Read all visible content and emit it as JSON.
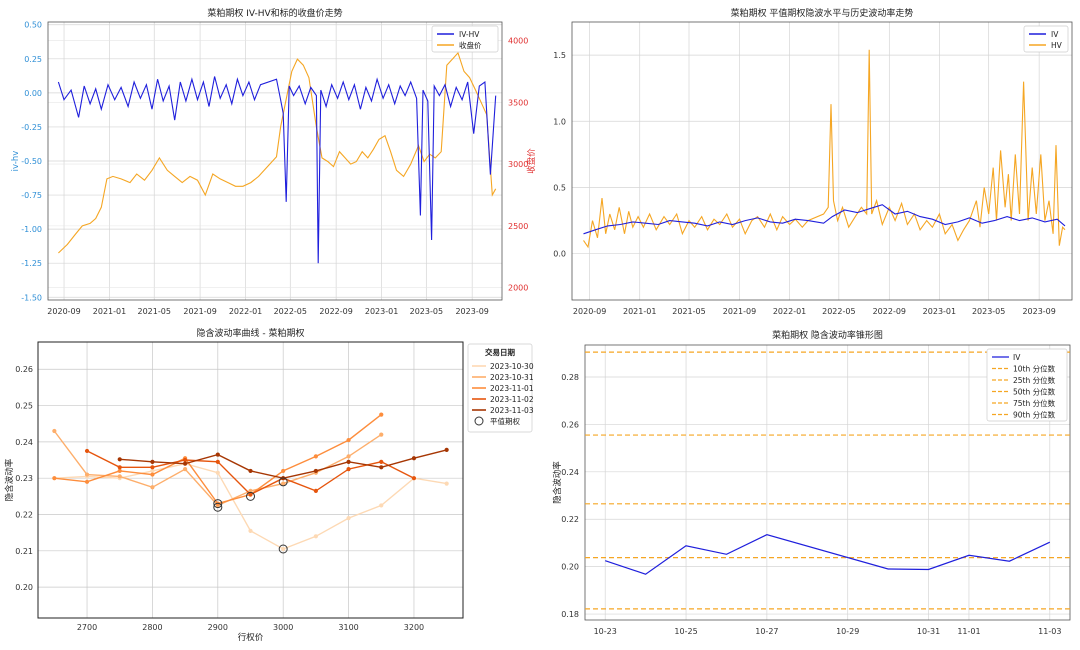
{
  "chart_data": [
    {
      "type": "line",
      "title": "菜粕期权 IV-HV和标的收盘价走势",
      "ylabel": "iv-hv",
      "y2label": "收盘价",
      "xlabel": "",
      "x_ticks": [
        "2020-09",
        "2021-01",
        "2021-05",
        "2021-09",
        "2022-01",
        "2022-05",
        "2022-09",
        "2023-01",
        "2023-05",
        "2023-09"
      ],
      "y_ticks": [
        "-1.50",
        "-1.25",
        "-1.00",
        "-0.75",
        "-0.50",
        "-0.25",
        "0.00",
        "0.25",
        "0.50"
      ],
      "y2_ticks": [
        "2000",
        "2500",
        "3000",
        "3500",
        "4000"
      ],
      "xlim": [
        "2020-07-20",
        "2023-11-20"
      ],
      "ylim": [
        -1.52,
        0.52
      ],
      "y2lim": [
        1900,
        4150
      ],
      "grid": true,
      "legend": "top-right",
      "colors": {
        "iv_hv": "#1f1fdc",
        "close": "#f5a623",
        "left_axis": "#2f8fd6",
        "right_axis": "#e03030"
      },
      "series": [
        {
          "name": "IV-HV",
          "axis": "left",
          "x": [
            "2020-08-17",
            "2020-09-01",
            "2020-09-20",
            "2020-10-10",
            "2020-10-25",
            "2020-11-10",
            "2020-11-25",
            "2020-12-10",
            "2020-12-28",
            "2021-01-15",
            "2021-02-01",
            "2021-02-20",
            "2021-03-08",
            "2021-03-25",
            "2021-04-10",
            "2021-04-25",
            "2021-05-10",
            "2021-05-25",
            "2021-06-10",
            "2021-06-25",
            "2021-07-10",
            "2021-07-25",
            "2021-08-10",
            "2021-08-25",
            "2021-09-10",
            "2021-09-25",
            "2021-10-10",
            "2021-10-25",
            "2021-11-10",
            "2021-11-25",
            "2021-12-10",
            "2021-12-25",
            "2022-01-10",
            "2022-01-25",
            "2022-02-10",
            "2022-03-25",
            "2022-04-05",
            "2022-04-12",
            "2022-04-20",
            "2022-04-28",
            "2022-05-10",
            "2022-05-25",
            "2022-06-10",
            "2022-06-25",
            "2022-07-10",
            "2022-07-15",
            "2022-07-22",
            "2022-08-05",
            "2022-08-20",
            "2022-09-05",
            "2022-09-20",
            "2022-10-05",
            "2022-10-20",
            "2022-11-05",
            "2022-11-20",
            "2022-12-05",
            "2022-12-20",
            "2023-01-05",
            "2023-01-20",
            "2023-02-05",
            "2023-02-20",
            "2023-03-05",
            "2023-03-20",
            "2023-04-05",
            "2023-04-15",
            "2023-04-22",
            "2023-05-05",
            "2023-05-15",
            "2023-05-22",
            "2023-06-05",
            "2023-06-20",
            "2023-07-05",
            "2023-07-20",
            "2023-08-05",
            "2023-08-20",
            "2023-09-05",
            "2023-09-20",
            "2023-10-05",
            "2023-10-20",
            "2023-11-03"
          ],
          "values": [
            0.08,
            -0.05,
            0.02,
            -0.18,
            0.05,
            -0.08,
            0.03,
            -0.12,
            0.06,
            -0.05,
            0.04,
            -0.1,
            0.08,
            -0.04,
            0.06,
            -0.12,
            0.1,
            -0.06,
            0.05,
            -0.2,
            0.08,
            -0.06,
            0.1,
            -0.05,
            0.08,
            -0.1,
            0.12,
            -0.04,
            0.06,
            -0.08,
            0.1,
            -0.02,
            0.08,
            -0.05,
            0.06,
            0.1,
            -0.05,
            -0.15,
            -0.8,
            0.05,
            -0.02,
            0.05,
            -0.08,
            0.04,
            -0.02,
            -1.25,
            0.02,
            -0.1,
            0.06,
            -0.04,
            0.08,
            -0.05,
            0.06,
            -0.12,
            0.04,
            -0.06,
            0.1,
            -0.04,
            0.06,
            -0.08,
            0.05,
            -0.02,
            0.08,
            -0.04,
            -0.9,
            0.02,
            -0.06,
            -1.08,
            0.05,
            -0.02,
            0.06,
            -0.1,
            0.04,
            -0.05,
            0.08,
            -0.3,
            0.05,
            0.08,
            -0.6,
            -0.02
          ]
        },
        {
          "name": "收盘价",
          "axis": "right",
          "x": [
            "2020-08-17",
            "2020-09-10",
            "2020-10-01",
            "2020-10-20",
            "2020-11-10",
            "2020-11-25",
            "2020-12-10",
            "2020-12-25",
            "2021-01-10",
            "2021-02-01",
            "2021-02-25",
            "2021-03-15",
            "2021-04-05",
            "2021-04-25",
            "2021-05-15",
            "2021-06-05",
            "2021-06-25",
            "2021-07-15",
            "2021-08-05",
            "2021-08-25",
            "2021-09-15",
            "2021-10-05",
            "2021-10-25",
            "2021-11-15",
            "2021-12-05",
            "2021-12-25",
            "2022-01-15",
            "2022-02-05",
            "2022-03-25",
            "2022-04-05",
            "2022-04-15",
            "2022-05-05",
            "2022-05-20",
            "2022-06-05",
            "2022-06-20",
            "2022-07-10",
            "2022-07-25",
            "2022-08-10",
            "2022-08-25",
            "2022-09-10",
            "2022-09-25",
            "2022-10-10",
            "2022-10-25",
            "2022-11-10",
            "2022-11-25",
            "2022-12-10",
            "2022-12-25",
            "2023-01-10",
            "2023-01-25",
            "2023-02-10",
            "2023-03-01",
            "2023-03-20",
            "2023-04-10",
            "2023-04-25",
            "2023-05-10",
            "2023-05-25",
            "2023-06-10",
            "2023-06-25",
            "2023-07-10",
            "2023-07-25",
            "2023-08-10",
            "2023-08-25",
            "2023-09-10",
            "2023-09-25",
            "2023-10-10",
            "2023-10-25",
            "2023-11-03"
          ],
          "values": [
            2280,
            2350,
            2430,
            2500,
            2520,
            2560,
            2650,
            2880,
            2900,
            2880,
            2850,
            2920,
            2870,
            2950,
            3050,
            2950,
            2900,
            2850,
            2900,
            2870,
            2750,
            2920,
            2880,
            2850,
            2820,
            2820,
            2850,
            2900,
            3060,
            3300,
            3450,
            3750,
            3850,
            3800,
            3700,
            3300,
            3050,
            3020,
            2980,
            3100,
            3050,
            3000,
            3020,
            3100,
            3050,
            3120,
            3200,
            3230,
            3100,
            2950,
            2900,
            3000,
            3150,
            3020,
            3080,
            3050,
            3100,
            3800,
            3850,
            3900,
            3750,
            3700,
            3600,
            3500,
            3400,
            2750,
            2800
          ]
        }
      ]
    },
    {
      "type": "line",
      "title": "菜粕期权 平值期权隐波水平与历史波动率走势",
      "xlabel": "",
      "ylabel": "",
      "x_ticks": [
        "2020-09",
        "2021-01",
        "2021-05",
        "2021-09",
        "2022-01",
        "2022-05",
        "2022-09",
        "2023-01",
        "2023-05",
        "2023-09"
      ],
      "y_ticks": [
        "0.0",
        "0.5",
        "1.0",
        "1.5"
      ],
      "xlim": [
        "2020-07-20",
        "2023-11-20"
      ],
      "ylim": [
        -0.35,
        1.75
      ],
      "grid": true,
      "legend": "top-right",
      "series": [
        {
          "name": "IV",
          "color": "#1f1fdc",
          "x": [
            "2020-08-17",
            "2020-09-15",
            "2020-10-15",
            "2020-11-15",
            "2020-12-15",
            "2021-01-15",
            "2021-02-15",
            "2021-03-15",
            "2021-04-15",
            "2021-05-15",
            "2021-06-15",
            "2021-07-15",
            "2021-08-15",
            "2021-09-15",
            "2021-10-15",
            "2021-11-15",
            "2021-12-15",
            "2022-01-15",
            "2022-02-15",
            "2022-03-25",
            "2022-04-15",
            "2022-05-15",
            "2022-06-15",
            "2022-07-15",
            "2022-08-15",
            "2022-09-15",
            "2022-10-15",
            "2022-11-15",
            "2022-12-15",
            "2023-01-15",
            "2023-02-15",
            "2023-03-15",
            "2023-04-15",
            "2023-05-15",
            "2023-06-15",
            "2023-07-15",
            "2023-08-15",
            "2023-09-15",
            "2023-10-15",
            "2023-11-03"
          ],
          "values": [
            0.15,
            0.18,
            0.21,
            0.22,
            0.24,
            0.23,
            0.22,
            0.25,
            0.24,
            0.23,
            0.21,
            0.24,
            0.22,
            0.25,
            0.27,
            0.24,
            0.23,
            0.26,
            0.25,
            0.23,
            0.28,
            0.33,
            0.31,
            0.34,
            0.37,
            0.3,
            0.32,
            0.28,
            0.26,
            0.22,
            0.24,
            0.27,
            0.23,
            0.25,
            0.28,
            0.25,
            0.27,
            0.24,
            0.26,
            0.21
          ]
        },
        {
          "name": "HV",
          "color": "#f5a623",
          "x": [
            "2020-08-17",
            "2020-08-28",
            "2020-09-08",
            "2020-09-20",
            "2020-10-01",
            "2020-10-10",
            "2020-10-20",
            "2020-11-01",
            "2020-11-12",
            "2020-11-25",
            "2020-12-05",
            "2020-12-15",
            "2020-12-28",
            "2021-01-10",
            "2021-01-25",
            "2021-02-10",
            "2021-03-01",
            "2021-03-15",
            "2021-04-01",
            "2021-04-15",
            "2021-05-01",
            "2021-05-15",
            "2021-06-01",
            "2021-06-15",
            "2021-07-01",
            "2021-07-15",
            "2021-08-01",
            "2021-08-15",
            "2021-09-01",
            "2021-09-15",
            "2021-10-01",
            "2021-10-15",
            "2021-11-01",
            "2021-11-15",
            "2021-12-01",
            "2021-12-15",
            "2022-01-01",
            "2022-01-15",
            "2022-02-01",
            "2022-02-15",
            "2022-03-25",
            "2022-04-05",
            "2022-04-12",
            "2022-04-18",
            "2022-04-28",
            "2022-05-10",
            "2022-05-25",
            "2022-06-10",
            "2022-06-25",
            "2022-07-08",
            "2022-07-14",
            "2022-07-20",
            "2022-08-01",
            "2022-08-15",
            "2022-09-01",
            "2022-09-15",
            "2022-10-01",
            "2022-10-15",
            "2022-11-01",
            "2022-11-15",
            "2022-12-01",
            "2022-12-15",
            "2023-01-01",
            "2023-01-15",
            "2023-02-01",
            "2023-02-15",
            "2023-03-01",
            "2023-03-15",
            "2023-04-01",
            "2023-04-10",
            "2023-04-20",
            "2023-05-01",
            "2023-05-12",
            "2023-05-20",
            "2023-05-30",
            "2023-06-10",
            "2023-06-18",
            "2023-06-25",
            "2023-07-05",
            "2023-07-15",
            "2023-07-25",
            "2023-08-05",
            "2023-08-15",
            "2023-08-25",
            "2023-09-05",
            "2023-09-15",
            "2023-09-25",
            "2023-10-05",
            "2023-10-12",
            "2023-10-20",
            "2023-10-28",
            "2023-11-03"
          ],
          "values": [
            0.1,
            0.05,
            0.25,
            0.12,
            0.42,
            0.15,
            0.3,
            0.18,
            0.35,
            0.15,
            0.32,
            0.2,
            0.28,
            0.2,
            0.3,
            0.18,
            0.28,
            0.22,
            0.3,
            0.15,
            0.25,
            0.2,
            0.28,
            0.18,
            0.26,
            0.22,
            0.3,
            0.2,
            0.26,
            0.15,
            0.25,
            0.28,
            0.2,
            0.3,
            0.18,
            0.28,
            0.22,
            0.26,
            0.2,
            0.25,
            0.3,
            0.35,
            1.13,
            0.4,
            0.25,
            0.35,
            0.2,
            0.28,
            0.35,
            0.3,
            1.54,
            0.3,
            0.4,
            0.22,
            0.35,
            0.25,
            0.38,
            0.22,
            0.3,
            0.18,
            0.25,
            0.2,
            0.3,
            0.15,
            0.22,
            0.1,
            0.18,
            0.25,
            0.4,
            0.2,
            0.5,
            0.3,
            0.65,
            0.25,
            0.78,
            0.35,
            0.6,
            0.25,
            0.75,
            0.3,
            1.3,
            0.25,
            0.65,
            0.3,
            0.75,
            0.25,
            0.4,
            0.15,
            0.82,
            0.06,
            0.2,
            0.18
          ]
        }
      ]
    },
    {
      "type": "line",
      "title": "隐含波动率曲线 - 菜粕期权",
      "xlabel": "行权价",
      "ylabel": "隐含波动率",
      "x_ticks": [
        "2700",
        "2800",
        "2900",
        "3000",
        "3100",
        "3200"
      ],
      "y_ticks": [
        "0.20",
        "0.21",
        "0.22",
        "0.23",
        "0.24",
        "0.25",
        "0.26"
      ],
      "xlim": [
        2625,
        3275
      ],
      "ylim": [
        0.1915,
        0.2675
      ],
      "grid": true,
      "legend": "outside-right",
      "legend_title": "交易日期",
      "marker_legend": "平值期权",
      "series": [
        {
          "name": "2023-10-30",
          "color": "#fdd9b4",
          "x": [
            2650,
            2700,
            2750,
            2800,
            2850,
            2900,
            2950,
            3000,
            3050,
            3100,
            3150,
            3200,
            3250
          ],
          "values": [
            0.23,
            0.2305,
            0.23,
            0.232,
            0.234,
            0.2315,
            0.2155,
            0.2105,
            0.214,
            0.219,
            0.2225,
            0.23,
            0.2285
          ]
        },
        {
          "name": "2023-10-31",
          "color": "#fdae6b",
          "x": [
            2650,
            2700,
            2750,
            2800,
            2850,
            2900,
            2950,
            3000,
            3050,
            3100,
            3150
          ],
          "values": [
            0.243,
            0.231,
            0.2305,
            0.2275,
            0.2325,
            0.2225,
            0.2265,
            0.2285,
            0.2315,
            0.236,
            0.242
          ]
        },
        {
          "name": "2023-11-01",
          "color": "#fd8d3c",
          "x": [
            2650,
            2700,
            2750,
            2800,
            2850,
            2900,
            2950,
            3000,
            3050,
            3100,
            3150
          ],
          "values": [
            0.23,
            0.229,
            0.232,
            0.231,
            0.2355,
            0.223,
            0.2255,
            0.232,
            0.236,
            0.2405,
            0.2475
          ]
        },
        {
          "name": "2023-11-02",
          "color": "#e6550d",
          "x": [
            2700,
            2750,
            2800,
            2850,
            2900,
            2950,
            3000,
            3050,
            3100,
            3150,
            3200
          ],
          "values": [
            0.2375,
            0.233,
            0.233,
            0.235,
            0.2345,
            0.2255,
            0.23,
            0.2265,
            0.2325,
            0.2345,
            0.23
          ]
        },
        {
          "name": "2023-11-03",
          "color": "#a63603",
          "x": [
            2750,
            2800,
            2850,
            2900,
            2950,
            3000,
            3050,
            3100,
            3150,
            3200,
            3250
          ],
          "values": [
            0.2352,
            0.2345,
            0.234,
            0.2365,
            0.232,
            0.23,
            0.232,
            0.2345,
            0.233,
            0.2355,
            0.2378
          ]
        }
      ],
      "atm_points": [
        {
          "x": 2900,
          "y": 0.222
        },
        {
          "x": 2900,
          "y": 0.223
        },
        {
          "x": 2950,
          "y": 0.225
        },
        {
          "x": 3000,
          "y": 0.229
        },
        {
          "x": 3000,
          "y": 0.2105
        }
      ]
    },
    {
      "type": "line",
      "title": "菜粕期权 隐含波动率锥形图",
      "xlabel": "",
      "ylabel": "隐含波动率",
      "x_ticks": [
        "10-23",
        "10-25",
        "10-27",
        "10-29",
        "10-31",
        "11-01",
        "11-03"
      ],
      "y_ticks": [
        "0.18",
        "0.20",
        "0.22",
        "0.24",
        "0.26",
        "0.28"
      ],
      "xlim": [
        "2023-10-22 12:00",
        "2023-11-03 12:00"
      ],
      "ylim": [
        0.1775,
        0.2935
      ],
      "grid": true,
      "legend": "top-right",
      "series": [
        {
          "name": "IV",
          "color": "#1f1fdc",
          "x": [
            "2023-10-23",
            "2023-10-24",
            "2023-10-25",
            "2023-10-26",
            "2023-10-27",
            "2023-10-30",
            "2023-10-31",
            "2023-11-01",
            "2023-11-02",
            "2023-11-03"
          ],
          "values": [
            0.2025,
            0.1968,
            0.2088,
            0.2052,
            0.2135,
            0.199,
            0.1988,
            0.2048,
            0.2023,
            0.2103
          ]
        }
      ],
      "reference_lines": [
        {
          "name": "10th 分位数",
          "value": 0.1822
        },
        {
          "name": "25th 分位数",
          "value": 0.2038
        },
        {
          "name": "50th 分位数",
          "value": 0.2265
        },
        {
          "name": "75th 分位数",
          "value": 0.2555
        },
        {
          "name": "90th 分位数",
          "value": 0.2905
        }
      ],
      "reference_color": "#f5a623"
    }
  ]
}
